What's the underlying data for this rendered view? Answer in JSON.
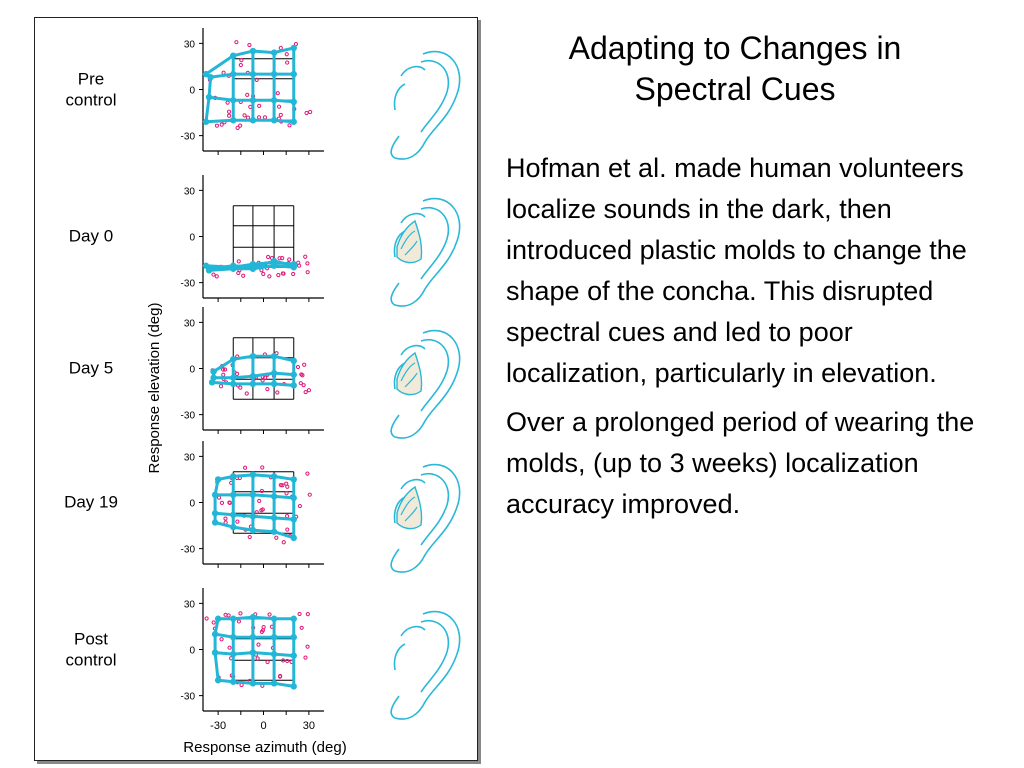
{
  "slide": {
    "title_line1": "Adapting to Changes in",
    "title_line2": "Spectral Cues",
    "paragraph1": "Hofman et al. made human volunteers localize sounds in the dark, then introduced plastic molds to change the shape of the concha. This disrupted spectral cues and led to poor localization, particularly in elevation.",
    "paragraph2": "Over a prolonged period of wearing the molds, (up to 3 weeks) localization accuracy improved."
  },
  "figure": {
    "ylabel": "Response elevation (deg)",
    "xlabel": "Response azimuth (deg)",
    "xticks": [
      "-30",
      "0",
      "30"
    ],
    "yticks": [
      "30",
      "0",
      "-30"
    ],
    "colors": {
      "response": "#23b6d6",
      "dots": "#e0197a",
      "ear": "#2ab8d8",
      "mold": "#f1ead9"
    }
  },
  "chart_data": {
    "type": "scatter",
    "xlabel": "Response azimuth (deg)",
    "ylabel": "Response elevation (deg)",
    "xlim": [
      -40,
      40
    ],
    "ylim": [
      -40,
      40
    ],
    "target_grid": {
      "azimuth": [
        -20,
        -7,
        7,
        20
      ],
      "elevation": [
        20,
        7,
        -7,
        -20
      ]
    },
    "panels": [
      {
        "label": "Pre control",
        "mold": false,
        "response_grid": [
          [
            [
              -38,
              10
            ],
            [
              -20,
              22
            ],
            [
              -7,
              25
            ],
            [
              7,
              24
            ],
            [
              20,
              27
            ]
          ],
          [
            [
              -35,
              8
            ],
            [
              -20,
              10
            ],
            [
              -7,
              10
            ],
            [
              7,
              10
            ],
            [
              20,
              10
            ]
          ],
          [
            [
              -36,
              -5
            ],
            [
              -20,
              -7
            ],
            [
              -7,
              -7
            ],
            [
              7,
              -7
            ],
            [
              20,
              -8
            ]
          ],
          [
            [
              -38,
              -21
            ],
            [
              -20,
              -20
            ],
            [
              -7,
              -20
            ],
            [
              7,
              -20
            ],
            [
              20,
              -21
            ]
          ]
        ]
      },
      {
        "label": "Day 0",
        "mold": true,
        "response_grid": [
          [
            [
              -38,
              -19
            ],
            [
              -20,
              -20
            ],
            [
              -7,
              -18
            ],
            [
              7,
              -17
            ],
            [
              20,
              -18
            ]
          ],
          [
            [
              -35,
              -21
            ],
            [
              -20,
              -19
            ],
            [
              -7,
              -20
            ],
            [
              7,
              -16
            ],
            [
              20,
              -19
            ]
          ],
          [
            [
              -36,
              -22
            ],
            [
              -20,
              -21
            ],
            [
              -7,
              -21
            ],
            [
              7,
              -19
            ],
            [
              20,
              -20
            ]
          ]
        ]
      },
      {
        "label": "Day 5",
        "mold": true,
        "response_grid": [
          [
            [
              -33,
              -2
            ],
            [
              -20,
              6
            ],
            [
              -7,
              8
            ],
            [
              7,
              8
            ],
            [
              20,
              5
            ]
          ],
          [
            [
              -33,
              -6
            ],
            [
              -20,
              -6
            ],
            [
              -7,
              -5
            ],
            [
              7,
              -3
            ],
            [
              20,
              -4
            ]
          ],
          [
            [
              -34,
              -9
            ],
            [
              -20,
              -10
            ],
            [
              -7,
              -10
            ],
            [
              7,
              -10
            ],
            [
              20,
              -11
            ]
          ]
        ]
      },
      {
        "label": "Day 19",
        "mold": true,
        "response_grid": [
          [
            [
              -30,
              15
            ],
            [
              -20,
              17
            ],
            [
              -7,
              18
            ],
            [
              7,
              17
            ],
            [
              20,
              15
            ]
          ],
          [
            [
              -32,
              5
            ],
            [
              -20,
              5
            ],
            [
              -7,
              5
            ],
            [
              7,
              4
            ],
            [
              20,
              3
            ]
          ],
          [
            [
              -32,
              -7
            ],
            [
              -20,
              -8
            ],
            [
              -7,
              -9
            ],
            [
              7,
              -10
            ],
            [
              20,
              -11
            ]
          ],
          [
            [
              -32,
              -13
            ],
            [
              -20,
              -16
            ],
            [
              -7,
              -18
            ],
            [
              7,
              -19
            ],
            [
              20,
              -23
            ]
          ]
        ]
      },
      {
        "label": "Post control",
        "mold": false,
        "response_grid": [
          [
            [
              -30,
              20
            ],
            [
              -20,
              20
            ],
            [
              -7,
              21
            ],
            [
              7,
              20
            ],
            [
              20,
              20
            ]
          ],
          [
            [
              -32,
              10
            ],
            [
              -20,
              8
            ],
            [
              -7,
              8
            ],
            [
              7,
              8
            ],
            [
              20,
              8
            ]
          ],
          [
            [
              -32,
              -2
            ],
            [
              -20,
              -3
            ],
            [
              -7,
              -2
            ],
            [
              7,
              -3
            ],
            [
              20,
              -4
            ]
          ],
          [
            [
              -30,
              -20
            ],
            [
              -20,
              -21
            ],
            [
              -7,
              -22
            ],
            [
              7,
              -22
            ],
            [
              20,
              -24
            ]
          ]
        ]
      }
    ]
  },
  "panel_labels": [
    "Pre\ncontrol",
    "Day 0",
    "Day 5",
    "Day 19",
    "Post\ncontrol"
  ]
}
